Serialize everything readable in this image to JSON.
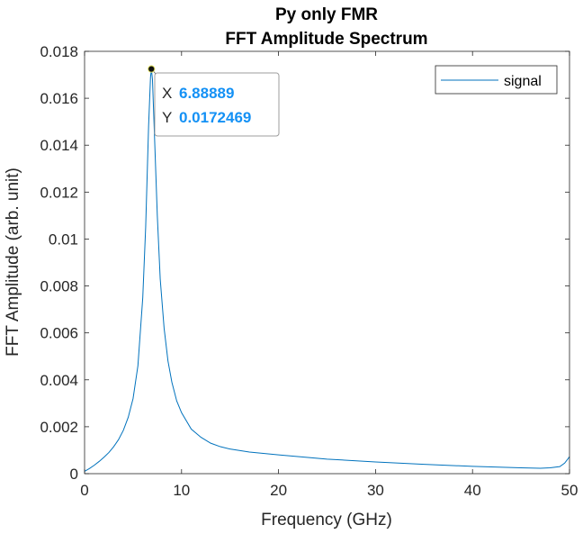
{
  "chart_data": {
    "type": "line",
    "title": [
      "Py only FMR",
      "FFT Amplitude Spectrum"
    ],
    "xlabel": "Frequency (GHz)",
    "ylabel": "FFT Amplitude (arb. unit)",
    "xlim": [
      0,
      50
    ],
    "ylim": [
      0,
      0.018
    ],
    "xticks": [
      0,
      10,
      20,
      30,
      40,
      50
    ],
    "xtick_labels": [
      "0",
      "10",
      "20",
      "30",
      "40",
      "50"
    ],
    "yticks": [
      0,
      0.002,
      0.004,
      0.006,
      0.008,
      0.01,
      0.012,
      0.014,
      0.016,
      0.018
    ],
    "ytick_labels": [
      "0",
      "0.002",
      "0.004",
      "0.006",
      "0.008",
      "0.01",
      "0.012",
      "0.014",
      "0.016",
      "0.018"
    ],
    "grid": false,
    "legend_position": "top-right",
    "series": [
      {
        "name": "signal",
        "color": "#0072bd",
        "x": [
          0,
          0.5,
          1,
          1.5,
          2,
          2.5,
          3,
          3.5,
          4,
          4.5,
          5,
          5.5,
          6,
          6.3,
          6.6,
          6.8,
          6.88889,
          7.0,
          7.2,
          7.5,
          7.8,
          8.2,
          8.6,
          9,
          9.5,
          10,
          11,
          12,
          13,
          14,
          15,
          17,
          20,
          25,
          30,
          35,
          40,
          45,
          47,
          48,
          49,
          49.5,
          50
        ],
        "y": [
          0.0001,
          0.00022,
          0.00036,
          0.00052,
          0.0007,
          0.0009,
          0.00115,
          0.00145,
          0.00185,
          0.0024,
          0.0032,
          0.0046,
          0.0075,
          0.0105,
          0.0148,
          0.0169,
          0.0172469,
          0.0168,
          0.0145,
          0.011,
          0.0083,
          0.0062,
          0.0048,
          0.0039,
          0.0031,
          0.0026,
          0.0019,
          0.00155,
          0.0013,
          0.00115,
          0.00105,
          0.00092,
          0.0008,
          0.00062,
          0.0005,
          0.0004,
          0.00031,
          0.00025,
          0.00023,
          0.00025,
          0.0003,
          0.00045,
          0.00072
        ]
      }
    ],
    "datatip": {
      "x_key": "X",
      "y_key": "Y",
      "x_value": "6.88889",
      "y_value": "0.0172469",
      "x": 6.88889,
      "y": 0.0172469
    }
  }
}
